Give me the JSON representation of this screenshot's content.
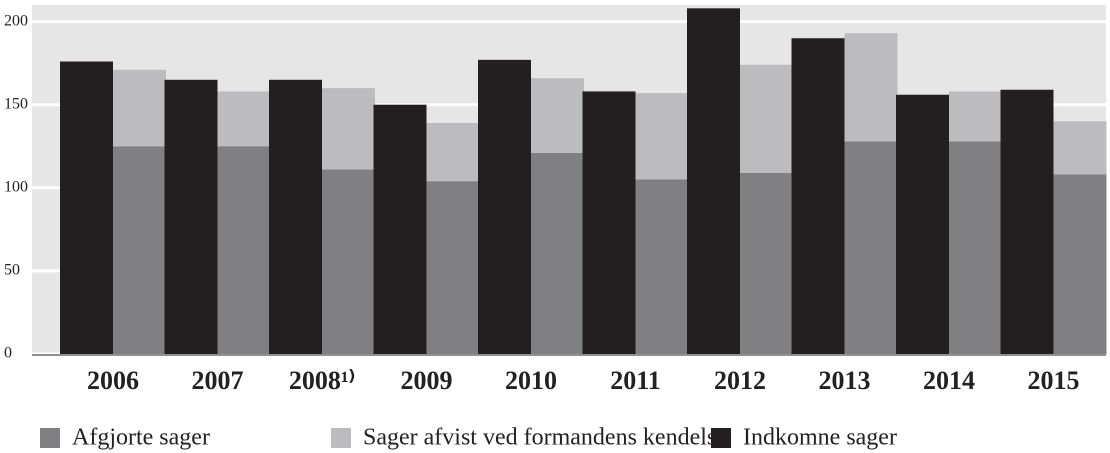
{
  "chart_data": {
    "type": "bar",
    "categories": [
      "2006",
      "2007",
      "2008¹⁾",
      "2009",
      "2010",
      "2011",
      "2012",
      "2013",
      "2014",
      "2015"
    ],
    "series": [
      {
        "name": "Afgjorte sager",
        "color": "#808083",
        "values": [
          125,
          125,
          111,
          104,
          121,
          105,
          109,
          128,
          128,
          108
        ],
        "stack": "a"
      },
      {
        "name": "Sager afvist ved formandens kendelse",
        "color": "#bcbcbe",
        "values": [
          46,
          33,
          49,
          35,
          45,
          52,
          65,
          65,
          30,
          32
        ],
        "stack": "a"
      },
      {
        "name": "Indkomne sager",
        "color": "#231f20",
        "values": [
          176,
          165,
          165,
          150,
          177,
          158,
          208,
          190,
          156,
          159
        ],
        "stack": "b"
      }
    ],
    "ylim": [
      0,
      210
    ],
    "yticks": [
      0,
      50,
      100,
      150,
      200
    ],
    "grid": true
  }
}
